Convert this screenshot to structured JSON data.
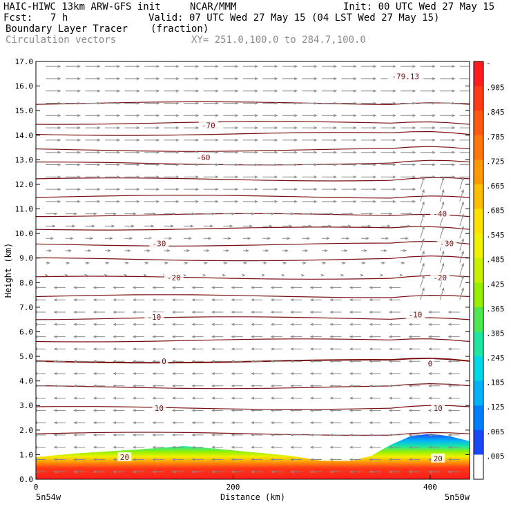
{
  "header": {
    "model": "HAIC-HIWC 13km ARW-GFS init",
    "org": "NCAR/MMM",
    "init": "Init: 00 UTC Wed 27 May 15",
    "fcst_label": "Fcst:",
    "fcst_value": "7 h",
    "valid": "Valid: 07 UTC Wed 27 May 15 (04 LST Wed 27 May 15)",
    "field1_name": "Boundary Layer Tracer",
    "field1_units": "(fraction)",
    "field2_name": "Circulation vectors",
    "xy_range": "XY= 251.0,100.0 to 284.7,100.0"
  },
  "chart_data": {
    "type": "contour",
    "ylabel": "Height (km)",
    "xlabel": "Distance (km)",
    "ylim": [
      0,
      17
    ],
    "xlim": [
      0,
      440
    ],
    "yticks": [
      "0.0",
      "1.0",
      "2.0",
      "3.0",
      "4.0",
      "5.0",
      "6.0",
      "7.0",
      "8.0",
      "9.0",
      "10.0",
      "11.0",
      "12.0",
      "13.0",
      "14.0",
      "15.0",
      "16.0",
      "17.0"
    ],
    "xticks": [
      0,
      200,
      400
    ],
    "x_left_label": "5n54w",
    "x_right_label": "5n50w",
    "colorbar": {
      "labels": [
        "-",
        ".905",
        ".845",
        ".785",
        ".725",
        ".665",
        ".605",
        ".545",
        ".485",
        ".425",
        ".365",
        ".305",
        ".245",
        ".185",
        ".125",
        ".065",
        ".005"
      ],
      "colors": [
        "#ff1c1c",
        "#ff3a16",
        "#ff5810",
        "#ff760a",
        "#ff9a06",
        "#ffbe02",
        "#ffe000",
        "#f0f000",
        "#c8f000",
        "#96f000",
        "#50e850",
        "#1ee8a0",
        "#00d8e8",
        "#00b4f8",
        "#0080ff",
        "#1a48f8",
        "#ffffff"
      ]
    },
    "isotherm_labels": [
      {
        "text": "-79.13",
        "x": 375,
        "y": 16.4
      },
      {
        "text": "-70",
        "x": 175,
        "y": 14.4
      },
      {
        "text": "-60",
        "x": 170,
        "y": 13.1
      },
      {
        "text": "-40",
        "x": 410,
        "y": 10.8
      },
      {
        "text": "-30",
        "x": 125,
        "y": 9.6
      },
      {
        "text": "-30",
        "x": 417,
        "y": 9.6
      },
      {
        "text": "-20",
        "x": 140,
        "y": 8.2
      },
      {
        "text": "-20",
        "x": 410,
        "y": 8.2
      },
      {
        "text": "-10",
        "x": 120,
        "y": 6.6
      },
      {
        "text": "-10",
        "x": 385,
        "y": 6.7
      },
      {
        "text": "0",
        "x": 130,
        "y": 4.8
      },
      {
        "text": "0",
        "x": 400,
        "y": 4.7
      },
      {
        "text": "10",
        "x": 125,
        "y": 2.9
      },
      {
        "text": "10",
        "x": 408,
        "y": 2.9
      },
      {
        "text": "20",
        "x": 90,
        "y": 0.9
      },
      {
        "text": "20",
        "x": 408,
        "y": 0.85
      }
    ],
    "isotherm_heights_km": [
      1.85,
      2.9,
      3.75,
      4.8,
      5.65,
      6.55,
      7.45,
      8.2,
      8.95,
      9.55,
      10.2,
      10.75,
      11.5,
      12.2,
      12.85,
      13.4,
      14.05,
      14.5,
      15.3
    ],
    "tracer_top_km": [
      [
        0,
        0.9
      ],
      [
        40,
        1.05
      ],
      [
        100,
        1.2
      ],
      [
        150,
        1.35
      ],
      [
        180,
        1.25
      ],
      [
        220,
        1.1
      ],
      [
        260,
        0.95
      ],
      [
        290,
        0.75
      ],
      [
        320,
        0.75
      ],
      [
        340,
        0.95
      ],
      [
        360,
        1.4
      ],
      [
        380,
        1.75
      ],
      [
        400,
        1.85
      ],
      [
        420,
        1.75
      ],
      [
        440,
        1.55
      ]
    ]
  }
}
